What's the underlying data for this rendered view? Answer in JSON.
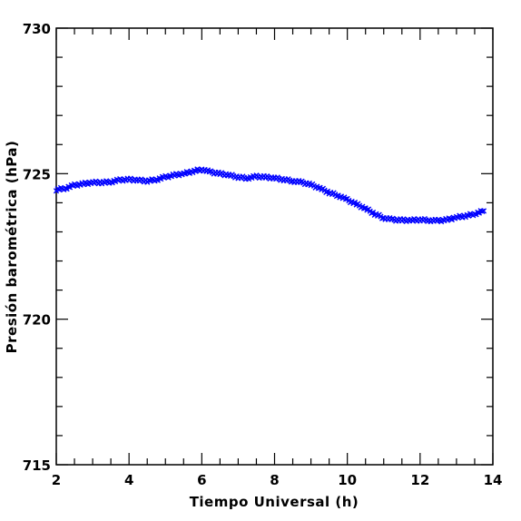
{
  "chart_data": {
    "type": "scatter",
    "title": "",
    "xlabel": "Tiempo Universal (h)",
    "ylabel": "Presión barométrica (hPa)",
    "xlim": [
      2,
      14
    ],
    "ylim": [
      715,
      730
    ],
    "x_ticks": [
      2,
      4,
      6,
      8,
      10,
      12,
      14
    ],
    "y_ticks": [
      715,
      720,
      725,
      730
    ],
    "grid": false,
    "legend": "none",
    "marker": "x",
    "color": "#0000ff",
    "series": [
      {
        "x": [
          2.0,
          2.25,
          2.5,
          2.75,
          3.0,
          3.25,
          3.5,
          3.75,
          4.0,
          4.25,
          4.5,
          4.75,
          5.0,
          5.25,
          5.5,
          5.75,
          6.0,
          6.25,
          6.5,
          6.75,
          7.0,
          7.25,
          7.5,
          7.75,
          8.0,
          8.25,
          8.5,
          8.75,
          9.0,
          9.25,
          9.5,
          9.75,
          10.0,
          10.25,
          10.5,
          10.75,
          11.0,
          11.25,
          11.5,
          11.75,
          12.0,
          12.25,
          12.5,
          12.75,
          13.0,
          13.25,
          13.5,
          13.75
        ],
        "y": [
          724.45,
          724.5,
          724.6,
          724.65,
          724.7,
          724.7,
          724.72,
          724.78,
          724.8,
          724.78,
          724.75,
          724.8,
          724.88,
          724.95,
          725.0,
          725.08,
          725.15,
          725.05,
          725.0,
          724.95,
          724.88,
          724.85,
          724.9,
          724.88,
          724.85,
          724.8,
          724.75,
          724.7,
          724.62,
          724.5,
          724.35,
          724.25,
          724.1,
          723.95,
          723.8,
          723.62,
          723.48,
          723.42,
          723.4,
          723.4,
          723.42,
          723.4,
          723.38,
          723.42,
          723.5,
          723.55,
          723.62,
          723.72
        ]
      }
    ]
  }
}
